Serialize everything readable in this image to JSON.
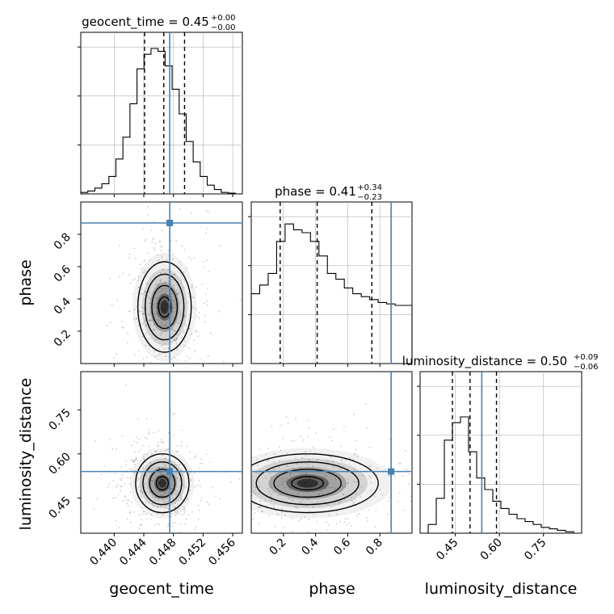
{
  "chart_data": {
    "type": "corner",
    "parameters": [
      "geocent_time",
      "phase",
      "luminosity_distance"
    ],
    "truths": [
      0.4475,
      0.87,
      0.54
    ],
    "colors": {
      "truth": "#4682b4",
      "hist": "#000000",
      "grid": "#b0b0b0"
    },
    "titles": [
      {
        "label": "geocent_time = 0.45",
        "sup": "+0.00",
        "sub": "−0.00"
      },
      {
        "label": "phase = 0.41",
        "sup": "+0.34",
        "sub": "−0.23"
      },
      {
        "label": "luminosity_distance = 0.50",
        "sup": "+0.09",
        "sub": "−0.06"
      }
    ],
    "axis_labels": [
      "geocent_time",
      "phase",
      "luminosity_distance"
    ],
    "ranges": [
      [
        0.4355,
        0.4573
      ],
      [
        0.0,
        1.0
      ],
      [
        0.33,
        0.88
      ]
    ],
    "ticks": {
      "geocent_time": {
        "values": [
          0.44,
          0.444,
          0.448,
          0.452,
          0.456
        ],
        "labels": [
          "0.440",
          "0.444",
          "0.448",
          "0.452",
          "0.456"
        ]
      },
      "phase_x": {
        "values": [
          0.2,
          0.4,
          0.6,
          0.8
        ],
        "labels": [
          "0.2",
          "0.4",
          "0.6",
          "0.8"
        ]
      },
      "phase_y": {
        "values": [
          0.2,
          0.4,
          0.6,
          0.8
        ],
        "labels": [
          "0.2",
          "0.4",
          "0.6",
          "0.8"
        ]
      },
      "luminosity_distance": {
        "values": [
          0.45,
          0.6,
          0.75
        ],
        "labels": [
          "0.45",
          "0.60",
          "0.75"
        ]
      }
    },
    "quantiles": [
      [
        0.4441,
        0.4467,
        0.4495
      ],
      [
        0.18,
        0.41,
        0.75
      ],
      [
        0.44,
        0.5,
        0.59
      ]
    ],
    "histograms": [
      {
        "values": [
          0.01,
          0.02,
          0.04,
          0.07,
          0.12,
          0.24,
          0.39,
          0.62,
          0.86,
          0.96,
          1.0,
          0.98,
          0.88,
          0.72,
          0.55,
          0.36,
          0.22,
          0.12,
          0.06,
          0.03,
          0.01,
          0.005,
          0.0
        ]
      },
      {
        "values": [
          0.48,
          0.54,
          0.62,
          0.84,
          0.96,
          0.92,
          0.9,
          0.84,
          0.74,
          0.62,
          0.58,
          0.52,
          0.48,
          0.46,
          0.44,
          0.42,
          0.41,
          0.4,
          0.4
        ]
      },
      {
        "values": [
          0.0,
          0.06,
          0.24,
          0.64,
          0.76,
          0.8,
          0.56,
          0.38,
          0.3,
          0.22,
          0.17,
          0.13,
          0.1,
          0.08,
          0.06,
          0.04,
          0.03,
          0.02,
          0.01,
          0.0
        ]
      }
    ],
    "density": [
      {
        "x": 0,
        "y": 1,
        "cx": 0.4468,
        "cy": 0.35,
        "sx": 0.0018,
        "sy": 0.14
      },
      {
        "x": 0,
        "y": 2,
        "cx": 0.4465,
        "cy": 0.5,
        "sx": 0.0018,
        "sy": 0.05
      },
      {
        "x": 1,
        "y": 2,
        "cx": 0.35,
        "cy": 0.5,
        "sx": 0.22,
        "sy": 0.05
      }
    ],
    "grid": true
  }
}
